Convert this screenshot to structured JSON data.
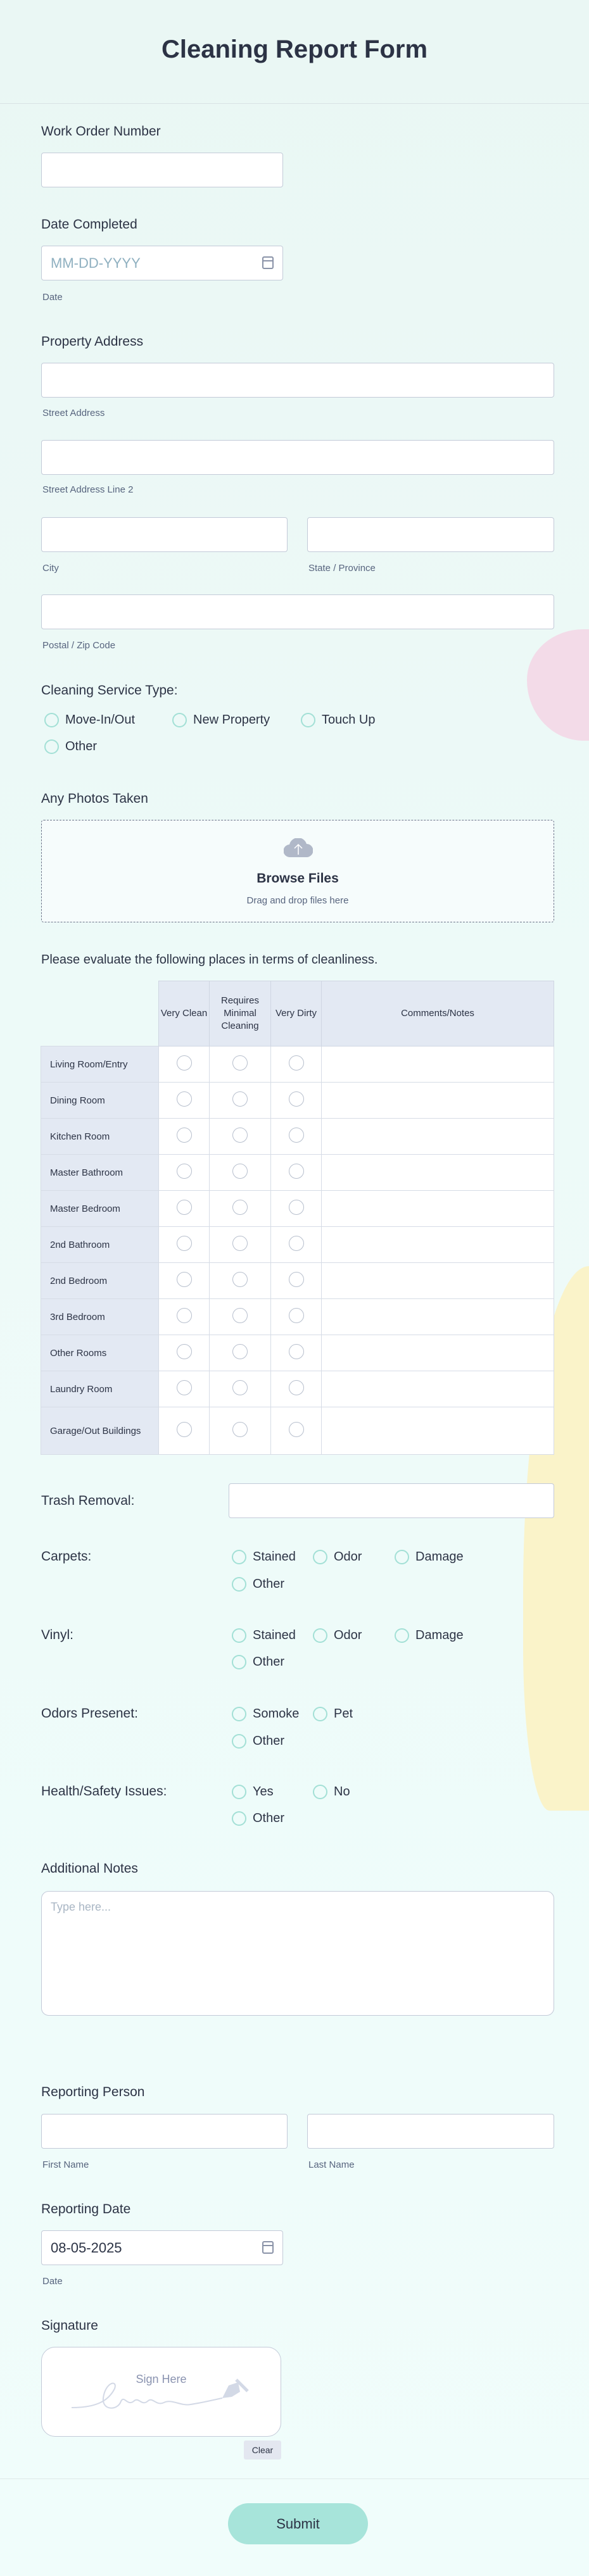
{
  "title": "Cleaning Report Form",
  "work_order": {
    "label": "Work Order Number",
    "value": ""
  },
  "date_completed": {
    "label": "Date Completed",
    "placeholder": "MM-DD-YYYY",
    "sublabel": "Date"
  },
  "address": {
    "label": "Property Address",
    "street": "Street Address",
    "street2": "Street Address Line 2",
    "city": "City",
    "state": "State / Province",
    "postal": "Postal / Zip Code"
  },
  "service_type": {
    "label": "Cleaning Service Type:",
    "options": [
      "Move-In/Out",
      "New Property",
      "Touch Up",
      "Other"
    ]
  },
  "photos": {
    "label": "Any Photos Taken",
    "browse": "Browse Files",
    "drag": "Drag and drop files here"
  },
  "matrix": {
    "label": "Please evaluate the following places in terms of cleanliness.",
    "columns": [
      "Very Clean",
      "Requires Minimal Cleaning",
      "Very Dirty",
      "Comments/Notes"
    ],
    "rows": [
      "Living Room/Entry",
      "Dining Room",
      "Kitchen Room",
      "Master Bathroom",
      "Master Bedroom",
      "2nd Bathroom",
      "2nd Bedroom",
      "3rd Bedroom",
      "Other Rooms",
      "Laundry Room",
      "Garage/Out Buildings"
    ]
  },
  "trash": {
    "label": "Trash Removal:"
  },
  "carpets": {
    "label": "Carpets:",
    "options": [
      "Stained",
      "Odor",
      "Damage",
      "Other"
    ]
  },
  "vinyl": {
    "label": "Vinyl:",
    "options": [
      "Stained",
      "Odor",
      "Damage",
      "Other"
    ]
  },
  "odors": {
    "label": "Odors Presenet:",
    "options": [
      "Somoke",
      "Pet",
      "Other"
    ]
  },
  "health": {
    "label": "Health/Safety Issues:",
    "options": [
      "Yes",
      "No",
      "Other"
    ]
  },
  "notes": {
    "label": "Additional Notes",
    "placeholder": "Type here..."
  },
  "reporter": {
    "label": "Reporting Person",
    "first": "First Name",
    "last": "Last Name"
  },
  "reporting_date": {
    "label": "Reporting Date",
    "value": "08-05-2025",
    "sublabel": "Date"
  },
  "signature": {
    "label": "Signature",
    "hint": "Sign Here",
    "clear": "Clear"
  },
  "submit": "Submit",
  "colors": {
    "accent": "#a7e4da",
    "radio_border": "#a3e0d6",
    "text": "#2c3345",
    "table_header": "#e3e9f3"
  }
}
